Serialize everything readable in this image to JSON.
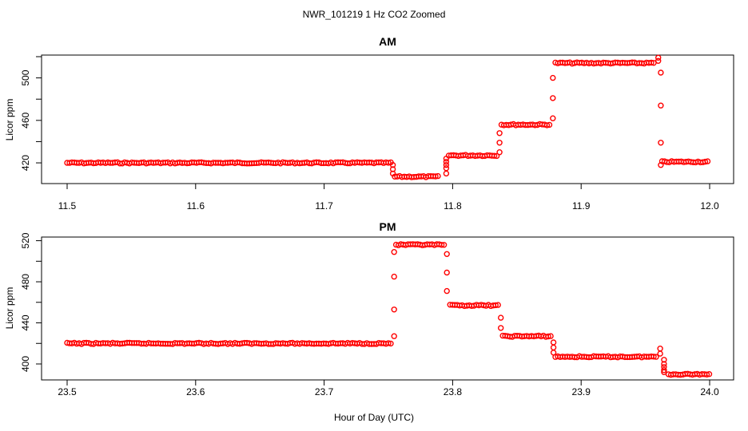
{
  "title": "NWR_101219  1 Hz CO2 Zoomed",
  "colors": {
    "points": "#ff0000"
  },
  "chart_data": [
    {
      "type": "scatter",
      "title": "AM",
      "xlabel": "",
      "ylabel": "Licor ppm",
      "xlim": [
        11.5,
        12.0
      ],
      "ylim": [
        402,
        520
      ],
      "xticks": [
        "11.5",
        "11.6",
        "11.7",
        "11.8",
        "11.9",
        "12.0"
      ],
      "yticks": [
        "420",
        "460",
        "500"
      ],
      "series": [
        {
          "segments": [
            {
              "x": [
                11.5,
                11.752
              ],
              "y": 420
            },
            {
              "x": [
                11.755,
                11.79
              ],
              "y": 407
            },
            {
              "x": [
                11.797,
                11.835
              ],
              "y": 427
            },
            {
              "x": [
                11.838,
                11.877
              ],
              "y": 456
            },
            {
              "x": [
                11.88,
                11.958
              ],
              "y": 514
            },
            {
              "x": [
                11.963,
                12.0
              ],
              "y": 421
            }
          ],
          "transitions": [
            {
              "x": 11.7535,
              "y": [
                418,
                414,
                410
              ]
            },
            {
              "x": 11.795,
              "y": [
                410,
                415,
                418,
                421,
                424
              ]
            },
            {
              "x": 11.8365,
              "y": [
                430,
                439,
                448
              ]
            },
            {
              "x": 11.878,
              "y": [
                462,
                481,
                500
              ]
            },
            {
              "x": 11.96,
              "y": [
                516,
                519
              ]
            },
            {
              "x": 11.962,
              "y": [
                505,
                474,
                439,
                418
              ]
            }
          ]
        }
      ]
    },
    {
      "type": "scatter",
      "title": "PM",
      "xlabel": "Hour of Day (UTC)",
      "ylabel": "Licor ppm",
      "xlim": [
        23.5,
        24.0
      ],
      "ylim": [
        386,
        522
      ],
      "xticks": [
        "23.5",
        "23.6",
        "23.7",
        "23.8",
        "23.9",
        "24.0"
      ],
      "yticks": [
        "400",
        "440",
        "480",
        "520"
      ],
      "series": [
        {
          "segments": [
            {
              "x": [
                23.5,
                23.753
              ],
              "y": 420
            },
            {
              "x": [
                23.756,
                23.795
              ],
              "y": 516
            },
            {
              "x": [
                23.798,
                23.836
              ],
              "y": 457
            },
            {
              "x": [
                23.839,
                23.877
              ],
              "y": 427
            },
            {
              "x": [
                23.88,
                23.96
              ],
              "y": 407
            },
            {
              "x": [
                23.968,
                24.0
              ],
              "y": 390
            }
          ],
          "transitions": [
            {
              "x": 23.7545,
              "y": [
                427,
                453,
                485,
                509
              ]
            },
            {
              "x": 23.7955,
              "y": [
                507,
                489,
                471
              ]
            },
            {
              "x": 23.8375,
              "y": [
                445,
                435
              ]
            },
            {
              "x": 23.8785,
              "y": [
                421,
                416,
                411
              ]
            },
            {
              "x": 23.9615,
              "y": [
                415,
                410
              ]
            },
            {
              "x": 23.9645,
              "y": [
                404,
                400,
                397,
                394,
                392
              ]
            }
          ]
        }
      ]
    }
  ]
}
